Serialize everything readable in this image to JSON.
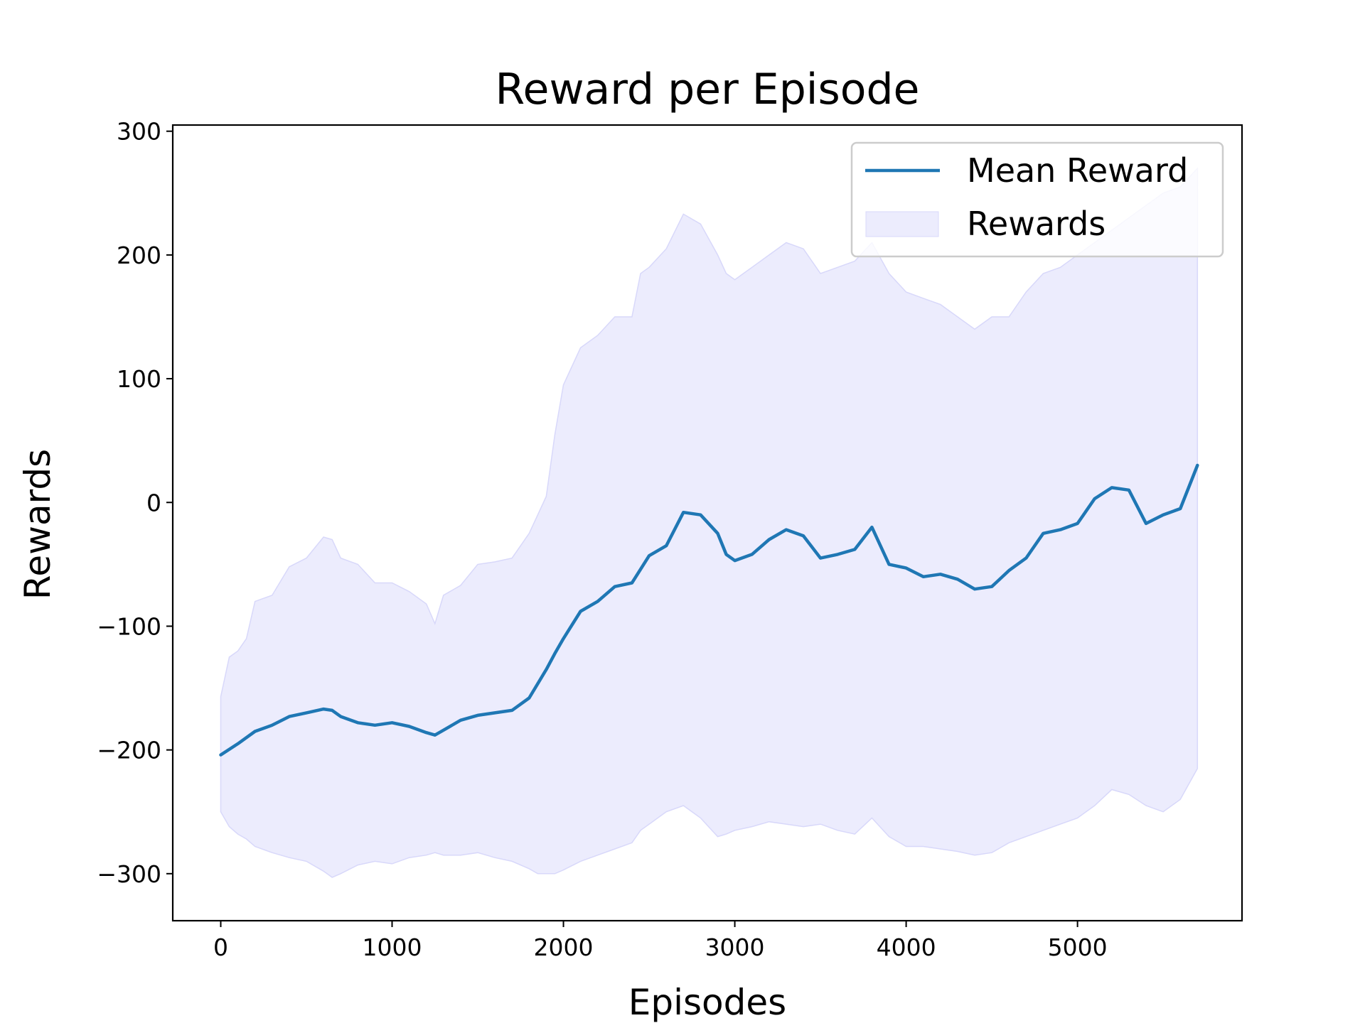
{
  "chart_data": {
    "type": "line",
    "title": "Reward per Episode",
    "xlabel": "Episodes",
    "ylabel": "Rewards",
    "xlim": [
      -280,
      5960
    ],
    "ylim": [
      -338,
      305
    ],
    "xticks": [
      0,
      1000,
      2000,
      3000,
      4000,
      5000
    ],
    "xtick_labels": [
      "0",
      "1000",
      "2000",
      "3000",
      "4000",
      "5000"
    ],
    "yticks": [
      300,
      200,
      100,
      0,
      -100,
      -200,
      -300
    ],
    "ytick_labels": [
      "300",
      "200",
      "100",
      "0",
      "−100",
      "−200",
      "−300"
    ],
    "grid": false,
    "legend_position": "top-right",
    "colors": {
      "mean": "#1f77b4",
      "band": "#ececfd",
      "band_edge": "#d8d8fa"
    },
    "series": [
      {
        "name": "Mean Reward",
        "style": "line",
        "x": [
          0,
          100,
          200,
          300,
          400,
          500,
          600,
          650,
          700,
          800,
          900,
          1000,
          1100,
          1200,
          1250,
          1300,
          1400,
          1500,
          1600,
          1700,
          1800,
          1900,
          1950,
          2000,
          2100,
          2200,
          2300,
          2400,
          2500,
          2600,
          2700,
          2800,
          2900,
          2950,
          3000,
          3100,
          3200,
          3300,
          3400,
          3500,
          3600,
          3700,
          3800,
          3900,
          4000,
          4100,
          4200,
          4300,
          4400,
          4500,
          4600,
          4700,
          4800,
          4900,
          5000,
          5100,
          5200,
          5300,
          5400,
          5500,
          5600,
          5700
        ],
        "y": [
          -204,
          -195,
          -185,
          -180,
          -173,
          -170,
          -167,
          -168,
          -173,
          -178,
          -180,
          -178,
          -181,
          -186,
          -188,
          -184,
          -176,
          -172,
          -170,
          -168,
          -158,
          -135,
          -122,
          -110,
          -88,
          -80,
          -68,
          -65,
          -43,
          -35,
          -8,
          -10,
          -25,
          -42,
          -47,
          -42,
          -30,
          -22,
          -27,
          -45,
          -42,
          -38,
          -20,
          -50,
          -53,
          -60,
          -58,
          -62,
          -70,
          -68,
          -55,
          -45,
          -25,
          -22,
          -17,
          3,
          12,
          10,
          -17,
          -10,
          -5,
          30
        ]
      },
      {
        "name": "Rewards",
        "style": "band",
        "x": [
          0,
          50,
          100,
          150,
          200,
          300,
          400,
          500,
          600,
          650,
          700,
          800,
          900,
          1000,
          1100,
          1200,
          1250,
          1300,
          1400,
          1500,
          1600,
          1700,
          1800,
          1850,
          1900,
          1950,
          2000,
          2100,
          2200,
          2300,
          2400,
          2450,
          2500,
          2600,
          2700,
          2800,
          2900,
          2950,
          3000,
          3100,
          3200,
          3300,
          3400,
          3500,
          3600,
          3700,
          3800,
          3900,
          4000,
          4100,
          4200,
          4300,
          4400,
          4500,
          4600,
          4700,
          4800,
          4900,
          5000,
          5100,
          5200,
          5300,
          5400,
          5500,
          5600,
          5700
        ],
        "upper": [
          -157,
          -125,
          -120,
          -110,
          -80,
          -75,
          -52,
          -45,
          -28,
          -30,
          -45,
          -50,
          -65,
          -65,
          -72,
          -82,
          -98,
          -75,
          -67,
          -50,
          -48,
          -45,
          -25,
          -10,
          5,
          55,
          95,
          125,
          135,
          150,
          150,
          185,
          190,
          205,
          233,
          225,
          200,
          185,
          180,
          190,
          200,
          210,
          205,
          185,
          190,
          195,
          210,
          185,
          170,
          165,
          160,
          150,
          140,
          150,
          150,
          170,
          185,
          190,
          200,
          210,
          220,
          230,
          240,
          250,
          255,
          270
        ],
        "lower": [
          -250,
          -262,
          -268,
          -272,
          -278,
          -283,
          -287,
          -290,
          -298,
          -303,
          -300,
          -293,
          -290,
          -292,
          -287,
          -285,
          -283,
          -285,
          -285,
          -283,
          -287,
          -290,
          -296,
          -300,
          -300,
          -300,
          -297,
          -290,
          -285,
          -280,
          -275,
          -265,
          -260,
          -250,
          -245,
          -255,
          -270,
          -268,
          -265,
          -262,
          -258,
          -260,
          -262,
          -260,
          -265,
          -268,
          -255,
          -270,
          -278,
          -278,
          -280,
          -282,
          -285,
          -283,
          -275,
          -270,
          -265,
          -260,
          -255,
          -245,
          -232,
          -236,
          -245,
          -250,
          -240,
          -215
        ]
      }
    ]
  }
}
